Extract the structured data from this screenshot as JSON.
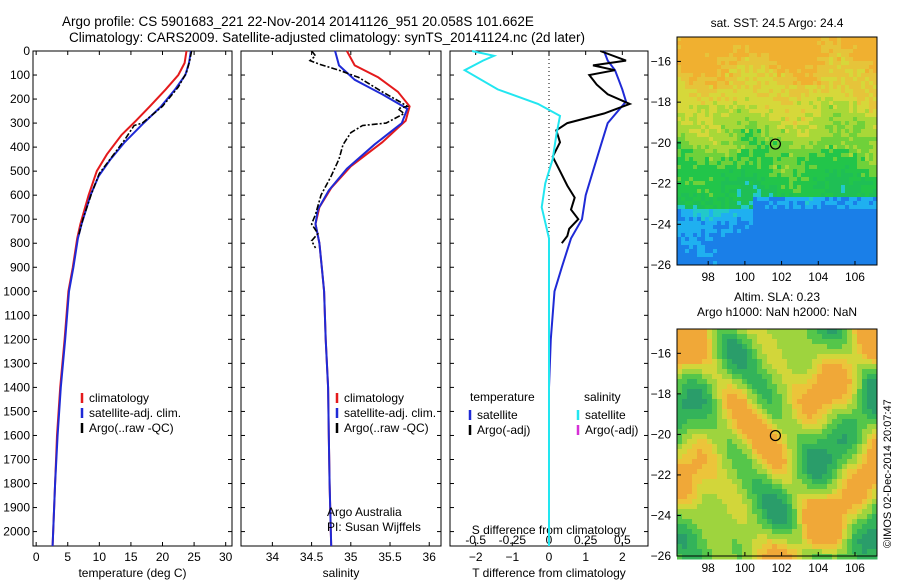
{
  "header": {
    "line1": "Argo profile: CS 5901683_221 22-Nov-2014 20141126_951 20.058S 101.662E",
    "line2": "Climatology: CARS2009. Satellite-adjusted climatology: synTS_20141124.nc (2d later)"
  },
  "colors": {
    "climatology": "#e41a1c",
    "satellite": "#1f2ad6",
    "argo": "#000000",
    "sal_sat": "#22e6f0",
    "sal_argo": "#d62fd6"
  },
  "chart_data": [
    {
      "type": "line",
      "xlabel": "temperature (deg C)",
      "xlim": [
        -0.5,
        31
      ],
      "ylim": [
        0,
        2060
      ],
      "xticks": [
        0,
        5,
        10,
        15,
        20,
        25,
        30
      ],
      "yticks": [
        0,
        100,
        200,
        300,
        400,
        500,
        600,
        700,
        800,
        900,
        1000,
        1100,
        1200,
        1300,
        1400,
        1500,
        1600,
        1700,
        1800,
        1900,
        2000
      ],
      "legend": [
        "climatology",
        "satellite-adj. clim.",
        "Argo(..raw -QC)"
      ],
      "series": [
        {
          "name": "climatology",
          "points": [
            [
              23.8,
              0
            ],
            [
              23.5,
              50
            ],
            [
              22.5,
              100
            ],
            [
              20.5,
              160
            ],
            [
              18,
              230
            ],
            [
              15.8,
              290
            ],
            [
              13.5,
              350
            ],
            [
              11.2,
              430
            ],
            [
              9.6,
              500
            ],
            [
              8.3,
              600
            ],
            [
              7,
              720
            ],
            [
              6.5,
              780
            ],
            [
              5.8,
              900
            ],
            [
              5.1,
              1000
            ],
            [
              4.5,
              1200
            ],
            [
              3.8,
              1400
            ],
            [
              3.3,
              1600
            ],
            [
              3,
              1800
            ],
            [
              2.6,
              2060
            ]
          ]
        },
        {
          "name": "satellite-adj. clim.",
          "points": [
            [
              24.5,
              0
            ],
            [
              24.2,
              50
            ],
            [
              23.6,
              100
            ],
            [
              22,
              160
            ],
            [
              19.8,
              230
            ],
            [
              17,
              300
            ],
            [
              14,
              380
            ],
            [
              11.8,
              450
            ],
            [
              9.9,
              520
            ],
            [
              8.6,
              600
            ],
            [
              7.2,
              720
            ],
            [
              6.6,
              780
            ],
            [
              5.9,
              900
            ],
            [
              5.2,
              1000
            ],
            [
              4.6,
              1200
            ],
            [
              3.9,
              1400
            ],
            [
              3.4,
              1600
            ],
            [
              3,
              1800
            ],
            [
              2.6,
              2060
            ]
          ]
        },
        {
          "name": "Argo(..raw -QC)",
          "points": [
            [
              24.6,
              0
            ],
            [
              24.3,
              40
            ],
            [
              23.8,
              90
            ],
            [
              22.5,
              150
            ],
            [
              20,
              230
            ],
            [
              16.8,
              300
            ],
            [
              15.5,
              310
            ],
            [
              14,
              370
            ],
            [
              12,
              440
            ],
            [
              10,
              510
            ],
            [
              8.8,
              590
            ],
            [
              7.4,
              700
            ],
            [
              6.7,
              770
            ]
          ]
        }
      ]
    },
    {
      "type": "line",
      "xlabel": "salinity",
      "xlim": [
        33.6,
        36.15
      ],
      "ylim": [
        0,
        2060
      ],
      "xticks": [
        34,
        34.5,
        35,
        35.5,
        36
      ],
      "yticks": [
        0,
        100,
        200,
        300,
        400,
        500,
        600,
        700,
        800,
        900,
        1000,
        1100,
        1200,
        1300,
        1400,
        1500,
        1600,
        1700,
        1800,
        1900,
        2000
      ],
      "legend": [
        "climatology",
        "satellite-adj. clim.",
        "Argo(..raw -QC)"
      ],
      "annotations": [
        "Argo Australia",
        "PI: Susan Wijffels"
      ],
      "series": [
        {
          "name": "climatology",
          "points": [
            [
              34.95,
              0
            ],
            [
              35.05,
              60
            ],
            [
              35.35,
              110
            ],
            [
              35.6,
              170
            ],
            [
              35.75,
              230
            ],
            [
              35.7,
              290
            ],
            [
              35.4,
              380
            ],
            [
              35,
              480
            ],
            [
              34.75,
              570
            ],
            [
              34.6,
              650
            ],
            [
              34.55,
              720
            ],
            [
              34.6,
              800
            ],
            [
              34.63,
              900
            ],
            [
              34.66,
              1000
            ],
            [
              34.68,
              1200
            ],
            [
              34.71,
              1400
            ],
            [
              34.72,
              1600
            ],
            [
              34.73,
              1800
            ],
            [
              34.75,
              2060
            ]
          ]
        },
        {
          "name": "satellite-adj. clim.",
          "points": [
            [
              34.8,
              0
            ],
            [
              34.85,
              60
            ],
            [
              35.05,
              120
            ],
            [
              35.4,
              180
            ],
            [
              35.72,
              240
            ],
            [
              35.65,
              300
            ],
            [
              35.3,
              390
            ],
            [
              34.95,
              490
            ],
            [
              34.72,
              580
            ],
            [
              34.58,
              660
            ],
            [
              34.55,
              720
            ],
            [
              34.6,
              800
            ],
            [
              34.63,
              900
            ],
            [
              34.66,
              1000
            ],
            [
              34.68,
              1200
            ],
            [
              34.71,
              1400
            ],
            [
              34.72,
              1600
            ],
            [
              34.73,
              1800
            ],
            [
              34.75,
              2060
            ]
          ]
        },
        {
          "name": "Argo(..raw -QC)",
          "points": [
            [
              34.5,
              0
            ],
            [
              34.55,
              20
            ],
            [
              34.48,
              40
            ],
            [
              34.6,
              55
            ],
            [
              34.85,
              80
            ],
            [
              35.1,
              110
            ],
            [
              35.4,
              170
            ],
            [
              35.62,
              210
            ],
            [
              35.72,
              230
            ],
            [
              35.6,
              240
            ],
            [
              35.68,
              260
            ],
            [
              35.45,
              300
            ],
            [
              35.15,
              310
            ],
            [
              35,
              340
            ],
            [
              34.9,
              390
            ],
            [
              34.85,
              450
            ],
            [
              34.75,
              520
            ],
            [
              34.62,
              600
            ],
            [
              34.55,
              680
            ],
            [
              34.5,
              720
            ],
            [
              34.58,
              760
            ],
            [
              34.5,
              790
            ],
            [
              34.55,
              820
            ]
          ]
        }
      ]
    },
    {
      "type": "line",
      "xlabel": "T difference from climatology",
      "xlabel_top": "S difference from climatology",
      "xlim": [
        -2.7,
        2.7
      ],
      "ylim": [
        0,
        2060
      ],
      "xticks": [
        -2,
        -1,
        0,
        1,
        2
      ],
      "xticks_top": [
        "-0.5",
        "-0.25",
        "0",
        "0.25",
        "0.5"
      ],
      "yticks": [
        0,
        100,
        200,
        300,
        400,
        500,
        600,
        700,
        800,
        900,
        1000,
        1100,
        1200,
        1300,
        1400,
        1500,
        1600,
        1700,
        1800,
        1900,
        2000
      ],
      "legend_headers": [
        "temperature",
        "salinity"
      ],
      "legend": [
        "satellite",
        "Argo(-adj)",
        "satellite",
        "Argo(-adj)"
      ],
      "series": [
        {
          "name": "satellite",
          "group": "temperature",
          "points": [
            [
              1.5,
              0
            ],
            [
              1.6,
              40
            ],
            [
              1.8,
              80
            ],
            [
              1.9,
              120
            ],
            [
              2,
              160
            ],
            [
              2.1,
              210
            ],
            [
              1.6,
              300
            ],
            [
              1.4,
              400
            ],
            [
              1.2,
              500
            ],
            [
              1,
              600
            ],
            [
              0.9,
              700
            ],
            [
              0.6,
              780
            ],
            [
              0.35,
              900
            ],
            [
              0.15,
              1000
            ],
            [
              0.05,
              1200
            ],
            [
              0,
              1400
            ],
            [
              0,
              2060
            ]
          ]
        },
        {
          "name": "Argo(-adj)",
          "group": "temperature",
          "points": [
            [
              1.4,
              0
            ],
            [
              2.1,
              40
            ],
            [
              1.2,
              60
            ],
            [
              1.8,
              80
            ],
            [
              1.1,
              100
            ],
            [
              1.3,
              140
            ],
            [
              1.6,
              180
            ],
            [
              2.2,
              220
            ],
            [
              1.5,
              260
            ],
            [
              0.5,
              300
            ],
            [
              0.2,
              330
            ],
            [
              0.3,
              380
            ],
            [
              0.1,
              440
            ],
            [
              0.3,
              500
            ],
            [
              0.5,
              560
            ],
            [
              0.7,
              610
            ],
            [
              0.6,
              660
            ],
            [
              0.8,
              700
            ],
            [
              0.55,
              740
            ],
            [
              0.5,
              770
            ],
            [
              0.35,
              800
            ]
          ]
        },
        {
          "name": "satellite",
          "group": "salinity",
          "points": [
            [
              -2.1,
              0
            ],
            [
              -1.5,
              20
            ],
            [
              -1.8,
              40
            ],
            [
              -2.3,
              80
            ],
            [
              -1.4,
              160
            ],
            [
              -0.3,
              220
            ],
            [
              0.3,
              270
            ],
            [
              0.2,
              350
            ],
            [
              0.1,
              450
            ],
            [
              -0.1,
              550
            ],
            [
              -0.2,
              650
            ],
            [
              0,
              780
            ],
            [
              0,
              1000
            ],
            [
              0,
              2060
            ]
          ]
        },
        {
          "name": "Argo(-adj)",
          "group": "salinity",
          "points": []
        }
      ]
    },
    {
      "type": "heatmap",
      "title": "sat. SST: 24.5  Argo: 24.4",
      "xlim": [
        96.3,
        107.2
      ],
      "ylim": [
        -26,
        -14.8
      ],
      "xticks": [
        98,
        100,
        102,
        104,
        106
      ],
      "yticks": [
        -16,
        -18,
        -20,
        -22,
        -24,
        -26
      ],
      "marker": [
        101.662,
        -20.058
      ]
    },
    {
      "type": "heatmap",
      "title": "Altim. SLA: 0.23",
      "subtitle": "Argo h1000: NaN h2000: NaN",
      "xlim": [
        96.3,
        107.2
      ],
      "ylim": [
        -26,
        -14.8
      ],
      "xticks": [
        98,
        100,
        102,
        104,
        106
      ],
      "yticks": [
        -16,
        -18,
        -20,
        -22,
        -24,
        -26
      ],
      "marker": [
        101.662,
        -20.058
      ]
    }
  ],
  "stamp": "©IMOS 02-Dec-2014 20:07:47"
}
